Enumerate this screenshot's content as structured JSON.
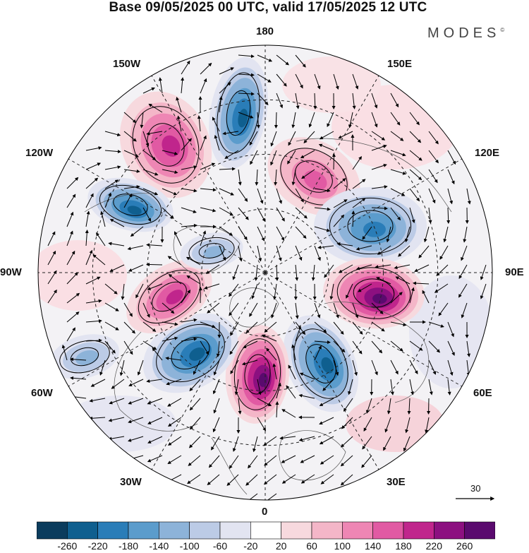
{
  "title": "Base 09/05/2025 00 UTC, valid 17/05/2025 12 UTC",
  "brand": "MODES",
  "brand_mark": "©",
  "longitude_labels": {
    "top": "180",
    "bottom": "0",
    "left": "90W",
    "right": "90E",
    "upper_left_outer": "150W",
    "upper_left_inner": "120W",
    "upper_right_outer": "150E",
    "upper_right_inner": "120E",
    "lower_left_inner": "60W",
    "lower_left_outer": "30W",
    "lower_right_inner": "60E",
    "lower_right_outer": "30E"
  },
  "wind_reference": {
    "value": "30"
  },
  "colorbar": {
    "ticks": [
      "-260",
      "-220",
      "-180",
      "-140",
      "-100",
      "-60",
      "-20",
      "20",
      "60",
      "100",
      "140",
      "180",
      "220",
      "260"
    ],
    "colors": [
      "#0b3c5d",
      "#0f5f8f",
      "#2a7db8",
      "#5b9ccc",
      "#8db3d9",
      "#bccbe6",
      "#e2e4f1",
      "#ffffff",
      "#f7d9de",
      "#f4b6c8",
      "#ee86b4",
      "#e15aa3",
      "#c0258c",
      "#8c1080",
      "#5a0a6e"
    ]
  },
  "anomaly_centers": [
    {
      "name": "low-pacific-north",
      "sign": "negative",
      "strength": 0.85
    },
    {
      "name": "high-pacific-west",
      "sign": "positive",
      "strength": 0.7
    },
    {
      "name": "low-alaska",
      "sign": "negative",
      "strength": 0.9
    },
    {
      "name": "high-siberia",
      "sign": "positive",
      "strength": 0.55
    },
    {
      "name": "low-central-asia",
      "sign": "negative",
      "strength": 0.75
    },
    {
      "name": "high-ural",
      "sign": "positive",
      "strength": 1.0
    },
    {
      "name": "low-scandinavia",
      "sign": "negative",
      "strength": 0.9
    },
    {
      "name": "high-north-atlantic",
      "sign": "positive",
      "strength": 0.95
    },
    {
      "name": "low-greenland-south",
      "sign": "negative",
      "strength": 0.85
    },
    {
      "name": "high-canada",
      "sign": "positive",
      "strength": 0.7
    },
    {
      "name": "low-hudson",
      "sign": "negative",
      "strength": 0.45
    },
    {
      "name": "low-atlantic-west",
      "sign": "negative",
      "strength": 0.4
    }
  ]
}
